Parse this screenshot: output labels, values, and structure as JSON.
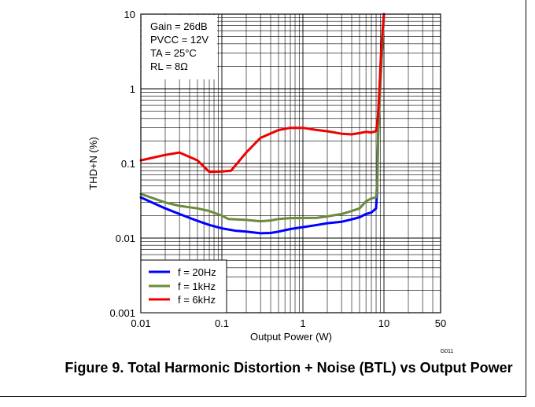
{
  "chart_data": {
    "type": "line",
    "title": "Figure 9. Total Harmonic Distortion + Noise (BTL) vs Output Power",
    "xlabel": "Output Power (W)",
    "ylabel": "THD+N (%)",
    "x_scale": "log",
    "y_scale": "log",
    "xlim": [
      0.01,
      50
    ],
    "ylim": [
      0.001,
      10
    ],
    "x_ticks": [
      "0.01",
      "0.1",
      "1",
      "10",
      "50"
    ],
    "y_ticks": [
      "0.001",
      "0.01",
      "0.1",
      "1",
      "10"
    ],
    "grid": true,
    "conditions": [
      "Gain = 26dB",
      "PVCC = 12V",
      "TA = 25°C",
      "RL = 8Ω"
    ],
    "legend_position": "bottom-left",
    "figure_code": "G011",
    "series": [
      {
        "name": "f = 20Hz",
        "color": "#0000ff",
        "points": [
          [
            0.01,
            0.035
          ],
          [
            0.02,
            0.025
          ],
          [
            0.03,
            0.021
          ],
          [
            0.05,
            0.017
          ],
          [
            0.07,
            0.015
          ],
          [
            0.1,
            0.0135
          ],
          [
            0.15,
            0.0125
          ],
          [
            0.2,
            0.0122
          ],
          [
            0.3,
            0.0116
          ],
          [
            0.4,
            0.0117
          ],
          [
            0.5,
            0.0122
          ],
          [
            0.7,
            0.0132
          ],
          [
            1,
            0.014
          ],
          [
            1.5,
            0.015
          ],
          [
            2,
            0.0158
          ],
          [
            3,
            0.0165
          ],
          [
            4,
            0.0178
          ],
          [
            5,
            0.019
          ],
          [
            6,
            0.021
          ],
          [
            7,
            0.022
          ],
          [
            8,
            0.025
          ],
          [
            8.2,
            0.04
          ],
          [
            8.5,
            0.25
          ],
          [
            9,
            1.1
          ],
          [
            9.5,
            3.5
          ],
          [
            10,
            10
          ]
        ]
      },
      {
        "name": "f = 1kHz",
        "color": "#6a8c3a",
        "points": [
          [
            0.01,
            0.039
          ],
          [
            0.02,
            0.03
          ],
          [
            0.03,
            0.027
          ],
          [
            0.05,
            0.025
          ],
          [
            0.07,
            0.023
          ],
          [
            0.1,
            0.02
          ],
          [
            0.12,
            0.018
          ],
          [
            0.2,
            0.0175
          ],
          [
            0.3,
            0.0168
          ],
          [
            0.4,
            0.0172
          ],
          [
            0.5,
            0.018
          ],
          [
            0.7,
            0.0185
          ],
          [
            1,
            0.0186
          ],
          [
            1.5,
            0.0187
          ],
          [
            2,
            0.0195
          ],
          [
            3,
            0.021
          ],
          [
            4,
            0.023
          ],
          [
            5,
            0.025
          ],
          [
            6,
            0.031
          ],
          [
            7,
            0.034
          ],
          [
            8,
            0.035
          ],
          [
            8.3,
            0.06
          ],
          [
            8.5,
            0.25
          ],
          [
            9,
            1.1
          ],
          [
            9.5,
            3.5
          ],
          [
            10,
            10
          ]
        ]
      },
      {
        "name": "f = 6kHz",
        "color": "#ee0000",
        "points": [
          [
            0.01,
            0.11
          ],
          [
            0.02,
            0.13
          ],
          [
            0.03,
            0.14
          ],
          [
            0.05,
            0.11
          ],
          [
            0.07,
            0.077
          ],
          [
            0.1,
            0.078
          ],
          [
            0.13,
            0.08
          ],
          [
            0.2,
            0.14
          ],
          [
            0.3,
            0.22
          ],
          [
            0.5,
            0.28
          ],
          [
            0.7,
            0.3
          ],
          [
            1,
            0.3
          ],
          [
            1.5,
            0.28
          ],
          [
            2,
            0.27
          ],
          [
            3,
            0.25
          ],
          [
            4,
            0.245
          ],
          [
            5,
            0.255
          ],
          [
            6,
            0.265
          ],
          [
            7,
            0.26
          ],
          [
            8,
            0.27
          ],
          [
            8.4,
            0.4
          ],
          [
            8.8,
            1.0
          ],
          [
            9.2,
            3.0
          ],
          [
            9.6,
            6.0
          ],
          [
            10,
            10
          ]
        ]
      }
    ]
  }
}
